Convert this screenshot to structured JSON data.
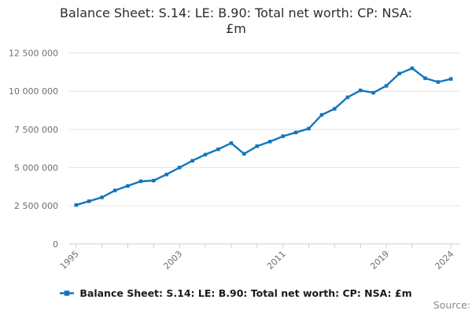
{
  "page": {
    "title_line1": "Balance Sheet: S.14: LE: B.90: Total net worth: CP: NSA:",
    "title_line2": "£m",
    "source_label": "Source:"
  },
  "legend": {
    "items": [
      {
        "label": "Balance Sheet: S.14: LE: B.90: Total net worth: CP: NSA: £m",
        "color": "#1076bc"
      }
    ]
  },
  "colors": {
    "series_line": "#1076bc",
    "axis_line": "#c2cede",
    "gridline": "#e6e6e6",
    "axis_label": "#6e6e6e",
    "title_text": "#2d2d2d",
    "legend_text": "#1a1a1a",
    "source_text": "#8a8a8a",
    "background": "#ffffff"
  },
  "chart_data": {
    "type": "line",
    "title": "Balance Sheet: S.14: LE: B.90: Total net worth: CP: NSA: £m",
    "xlabel": "",
    "ylabel": "",
    "x": [
      1995,
      1996,
      1997,
      1998,
      1999,
      2000,
      2001,
      2002,
      2003,
      2004,
      2005,
      2006,
      2007,
      2008,
      2009,
      2010,
      2011,
      2012,
      2013,
      2014,
      2015,
      2016,
      2017,
      2018,
      2019,
      2020,
      2021,
      2022,
      2023,
      2024
    ],
    "series": [
      {
        "name": "Balance Sheet: S.14: LE: B.90: Total net worth: CP: NSA: £m",
        "values": [
          2550000,
          2800000,
          3050000,
          3500000,
          3800000,
          4100000,
          4150000,
          4550000,
          5000000,
          5450000,
          5850000,
          6200000,
          6600000,
          5900000,
          6400000,
          6700000,
          7050000,
          7300000,
          7550000,
          8450000,
          8850000,
          9600000,
          10050000,
          9900000,
          10350000,
          11150000,
          11500000,
          10850000,
          10600000,
          10800000
        ]
      }
    ],
    "ylim": [
      0,
      12500000
    ],
    "yticks": [
      0,
      2500000,
      5000000,
      7500000,
      10000000,
      12500000
    ],
    "ytick_labels": [
      "0",
      "2 500 000",
      "5 000 000",
      "7 500 000",
      "10 000 000",
      "12 500 000"
    ],
    "xticks": [
      1995,
      1997,
      1999,
      2001,
      2003,
      2005,
      2007,
      2009,
      2011,
      2013,
      2015,
      2017,
      2019,
      2021,
      2024
    ],
    "xtick_labels_shown": [
      "1995",
      "2003",
      "2011",
      "2019",
      "2024"
    ],
    "x_label_rotation": -45,
    "grid": "horizontal-only",
    "legend_position": "bottom",
    "marker": "square"
  }
}
